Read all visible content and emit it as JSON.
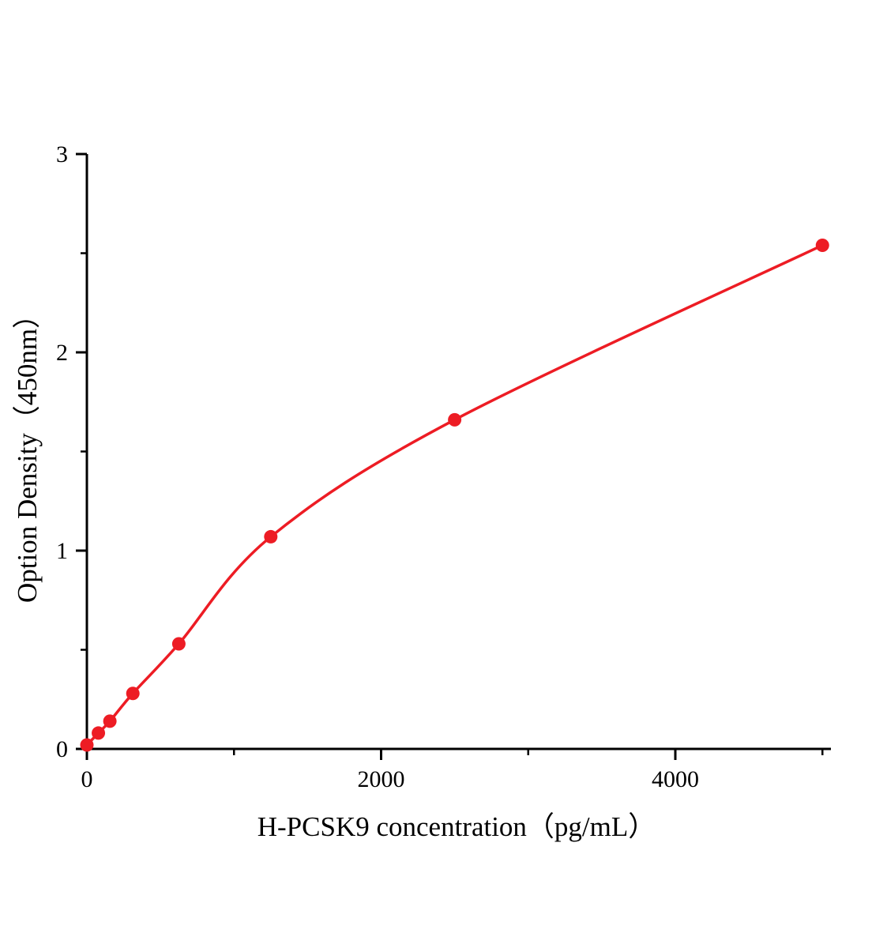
{
  "chart_data": {
    "type": "scatter",
    "title": "",
    "xlabel": "H-PCSK9 concentration（pg/mL）",
    "ylabel": "Option Density（450nm）",
    "x": [
      0,
      78.125,
      156.25,
      312.5,
      625,
      1250,
      2500,
      5000
    ],
    "y": [
      0.02,
      0.08,
      0.14,
      0.28,
      0.53,
      1.07,
      1.66,
      2.54
    ],
    "curve": "smooth-fit-through-points",
    "legend": "none",
    "grid": "off",
    "x_axis": {
      "range": [
        0,
        5050
      ],
      "major_ticks": [
        0,
        2000,
        4000
      ],
      "tick_labels": [
        "0",
        "2000",
        "4000"
      ],
      "minor_ticks": [
        1000,
        3000,
        5000
      ]
    },
    "y_axis": {
      "range": [
        0,
        3
      ],
      "major_ticks": [
        0,
        1,
        2,
        3
      ],
      "tick_labels": [
        "0",
        "1",
        "2",
        "3"
      ],
      "minor_ticks": [
        0.5,
        1.5,
        2.5
      ]
    },
    "style": {
      "curve_color": "#ed1c24",
      "point_color": "#ed1c24",
      "axis_color": "#000000",
      "background_color": "#ffffff"
    }
  }
}
